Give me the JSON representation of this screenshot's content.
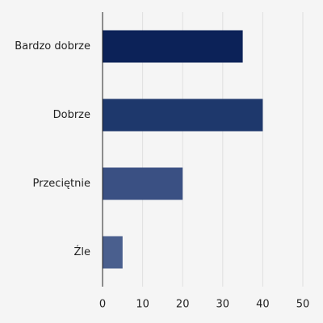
{
  "chart_data": {
    "type": "bar",
    "orientation": "horizontal",
    "categories": [
      "Bardzo dobrze",
      "Dobrze",
      "Przeciętnie",
      "Źle"
    ],
    "values": [
      35,
      40,
      20,
      5
    ],
    "colors": [
      "#0c2258",
      "#1e386c",
      "#3a5083",
      "#4a5f8e"
    ],
    "xlim": [
      0,
      50
    ],
    "xticks": [
      0,
      10,
      20,
      30,
      40,
      50
    ],
    "grid": true
  }
}
